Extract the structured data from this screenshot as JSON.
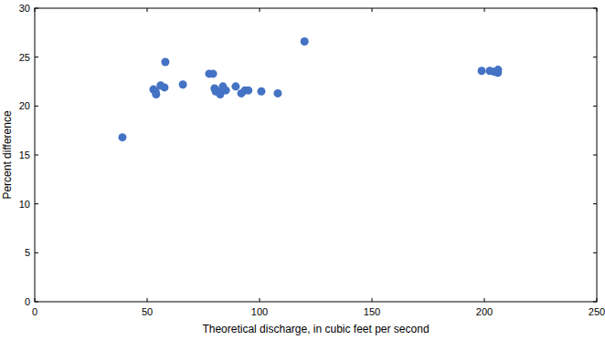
{
  "chart_data": {
    "type": "scatter",
    "x_label": "Theoretical discharge, in cubic feet per second",
    "y_label": "Percent difference",
    "x": [
      39,
      52.8,
      54,
      53.7,
      56,
      57.7,
      58.1,
      65.9,
      77.6,
      79.3,
      80,
      80.5,
      82,
      82.5,
      83.7,
      84,
      85,
      89.4,
      91.9,
      93.5,
      95,
      100.8,
      108.1,
      120,
      198.8,
      202.4,
      204.5,
      205.7,
      206,
      206.1
    ],
    "values": [
      16.8,
      21.7,
      21.2,
      21.5,
      22.1,
      21.9,
      24.5,
      22.2,
      23.3,
      23.3,
      21.8,
      21.5,
      21.5,
      21.2,
      22.0,
      21.7,
      21.6,
      22.0,
      21.3,
      21.6,
      21.6,
      21.5,
      21.3,
      26.6,
      23.6,
      23.6,
      23.5,
      23.6,
      23.4,
      23.7
    ],
    "color": "#4472c4",
    "marker": "circle",
    "xlim": [
      0,
      250
    ],
    "xticks": [
      0,
      50,
      100,
      150,
      200,
      250
    ],
    "ylim": [
      0,
      30
    ],
    "yticks": [
      0,
      5,
      10,
      15,
      20,
      25,
      30
    ],
    "grid": false
  }
}
